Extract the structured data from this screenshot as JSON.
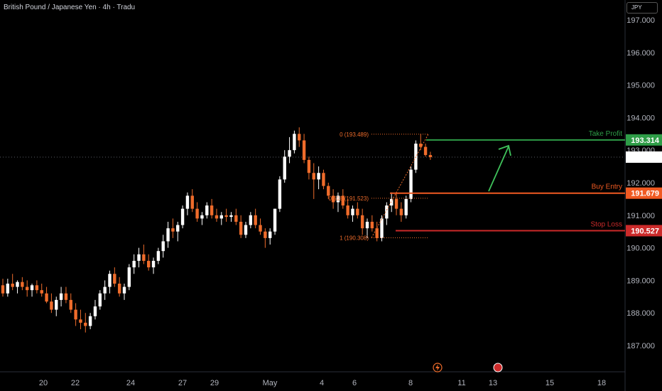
{
  "header": {
    "title": "British Pound / Japanese Yen · 4h · Tradu",
    "currency_button": "JPY"
  },
  "colors": {
    "background": "#000000",
    "up_candle": "#ffffff",
    "down_candle": "#ef6c2b",
    "take_profit": "#2e9d47",
    "buy_entry": "#f05a22",
    "stop_loss": "#cc2a2a",
    "arrow": "#3fc25b",
    "fib": "#ef6c2b",
    "axis_text": "#b2b5be"
  },
  "chart_data": {
    "type": "candlestick",
    "y_axis": {
      "range": [
        186.3,
        197.6
      ],
      "ticks": [
        "197.000",
        "196.000",
        "195.000",
        "194.000",
        "193.000",
        "192.000",
        "191.000",
        "190.000",
        "189.000",
        "188.000",
        "187.000"
      ]
    },
    "x_axis": {
      "ticks": [
        "20",
        "22",
        "24",
        "27",
        "29",
        "May",
        "4",
        "6",
        "8",
        "11",
        "13",
        "15",
        "18"
      ]
    },
    "current_price": {
      "value": 192.786,
      "label": "192.786"
    },
    "levels": [
      {
        "name": "Take Profit",
        "value": 193.314,
        "label": "193.314",
        "color": "#2e9d47"
      },
      {
        "name": "Buy Entry",
        "value": 191.679,
        "label": "191.679",
        "color": "#f05a22"
      },
      {
        "name": "Stop Loss",
        "value": 190.527,
        "label": "190.527",
        "color": "#cc2a2a"
      }
    ],
    "fib": [
      {
        "label": "0 (193.489)",
        "value": 193.489
      },
      {
        "label": "0.618 (191.523)",
        "value": 191.523
      },
      {
        "label": "1 (190.308)",
        "value": 190.308
      }
    ],
    "candles": [
      [
        188.85,
        189.05,
        188.5,
        188.6
      ],
      [
        188.6,
        189.05,
        188.5,
        188.9
      ],
      [
        188.9,
        189.2,
        188.7,
        188.8
      ],
      [
        188.8,
        189.0,
        188.6,
        188.95
      ],
      [
        188.95,
        189.1,
        188.7,
        188.8
      ],
      [
        188.8,
        189.0,
        188.5,
        188.7
      ],
      [
        188.7,
        188.9,
        188.5,
        188.85
      ],
      [
        188.85,
        189.0,
        188.6,
        188.7
      ],
      [
        188.7,
        188.9,
        188.5,
        188.6
      ],
      [
        188.6,
        188.8,
        188.3,
        188.35
      ],
      [
        188.35,
        188.6,
        188.0,
        188.1
      ],
      [
        188.1,
        188.5,
        187.9,
        188.4
      ],
      [
        188.4,
        188.8,
        188.2,
        188.6
      ],
      [
        188.6,
        188.8,
        188.3,
        188.4
      ],
      [
        188.4,
        188.6,
        188.0,
        188.1
      ],
      [
        188.1,
        188.3,
        187.6,
        187.8
      ],
      [
        187.8,
        188.1,
        187.5,
        187.7
      ],
      [
        187.7,
        188.0,
        187.4,
        187.6
      ],
      [
        187.6,
        188.0,
        187.5,
        187.9
      ],
      [
        187.9,
        188.4,
        187.8,
        188.2
      ],
      [
        188.2,
        188.7,
        188.1,
        188.6
      ],
      [
        188.6,
        189.0,
        188.4,
        188.8
      ],
      [
        188.8,
        189.3,
        188.6,
        189.2
      ],
      [
        189.2,
        189.4,
        188.8,
        188.9
      ],
      [
        188.9,
        189.1,
        188.5,
        188.6
      ],
      [
        188.6,
        188.9,
        188.4,
        188.8
      ],
      [
        188.8,
        189.5,
        188.7,
        189.4
      ],
      [
        189.4,
        189.8,
        189.2,
        189.6
      ],
      [
        189.6,
        190.0,
        189.4,
        189.8
      ],
      [
        189.8,
        190.1,
        189.5,
        189.6
      ],
      [
        189.6,
        189.8,
        189.3,
        189.4
      ],
      [
        189.4,
        189.7,
        189.2,
        189.6
      ],
      [
        189.6,
        190.0,
        189.5,
        189.9
      ],
      [
        189.9,
        190.4,
        189.7,
        190.2
      ],
      [
        190.2,
        190.8,
        190.0,
        190.6
      ],
      [
        190.6,
        190.9,
        190.3,
        190.5
      ],
      [
        190.5,
        190.8,
        190.2,
        190.7
      ],
      [
        190.7,
        191.3,
        190.6,
        191.2
      ],
      [
        191.2,
        191.7,
        191.0,
        191.6
      ],
      [
        191.6,
        191.8,
        191.1,
        191.2
      ],
      [
        191.2,
        191.4,
        190.8,
        190.9
      ],
      [
        190.9,
        191.1,
        190.7,
        191.0
      ],
      [
        191.0,
        191.4,
        190.9,
        191.3
      ],
      [
        191.3,
        191.5,
        190.9,
        191.0
      ],
      [
        191.0,
        191.2,
        190.8,
        190.9
      ],
      [
        190.9,
        191.1,
        190.7,
        191.0
      ],
      [
        191.0,
        191.2,
        190.8,
        190.95
      ],
      [
        190.95,
        191.1,
        190.8,
        191.0
      ],
      [
        191.0,
        191.2,
        190.7,
        190.8
      ],
      [
        190.8,
        191.0,
        190.3,
        190.4
      ],
      [
        190.4,
        190.8,
        190.3,
        190.7
      ],
      [
        190.7,
        191.1,
        190.6,
        191.0
      ],
      [
        191.0,
        191.2,
        190.6,
        190.7
      ],
      [
        190.7,
        190.9,
        190.4,
        190.5
      ],
      [
        190.5,
        190.6,
        190.0,
        190.3
      ],
      [
        190.3,
        190.6,
        190.1,
        190.5
      ],
      [
        190.5,
        191.2,
        190.4,
        191.2
      ],
      [
        191.2,
        192.2,
        191.1,
        192.1
      ],
      [
        192.1,
        193.0,
        192.0,
        192.8
      ],
      [
        192.8,
        193.4,
        192.6,
        193.0
      ],
      [
        193.0,
        193.6,
        192.9,
        193.5
      ],
      [
        193.5,
        193.7,
        193.1,
        193.3
      ],
      [
        193.3,
        193.5,
        192.6,
        192.7
      ],
      [
        192.7,
        192.8,
        192.1,
        192.3
      ],
      [
        192.3,
        192.6,
        191.5,
        192.1
      ],
      [
        192.1,
        192.5,
        191.8,
        192.3
      ],
      [
        192.3,
        192.4,
        191.8,
        191.9
      ],
      [
        191.9,
        192.0,
        191.5,
        191.6
      ],
      [
        191.6,
        191.8,
        191.2,
        191.4
      ],
      [
        191.4,
        191.7,
        191.1,
        191.6
      ],
      [
        191.6,
        191.8,
        191.2,
        191.3
      ],
      [
        191.3,
        191.5,
        190.9,
        191.0
      ],
      [
        191.0,
        191.3,
        190.8,
        191.2
      ],
      [
        191.2,
        191.4,
        190.9,
        191.0
      ],
      [
        191.0,
        191.2,
        190.4,
        190.6
      ],
      [
        190.6,
        190.9,
        190.3,
        190.8
      ],
      [
        190.8,
        191.0,
        190.5,
        190.6
      ],
      [
        190.6,
        190.8,
        190.2,
        190.3
      ],
      [
        190.3,
        191.0,
        190.2,
        190.9
      ],
      [
        190.9,
        191.4,
        190.7,
        191.3
      ],
      [
        191.3,
        191.7,
        191.1,
        191.5
      ],
      [
        191.5,
        191.7,
        191.0,
        191.2
      ],
      [
        191.2,
        191.4,
        190.8,
        191.0
      ],
      [
        191.0,
        191.6,
        190.9,
        191.5
      ],
      [
        191.5,
        192.5,
        191.4,
        192.4
      ],
      [
        192.4,
        193.3,
        192.3,
        193.2
      ],
      [
        193.2,
        193.5,
        193.0,
        193.1
      ],
      [
        193.1,
        193.2,
        192.8,
        192.85
      ],
      [
        192.85,
        192.95,
        192.7,
        192.786
      ]
    ]
  }
}
